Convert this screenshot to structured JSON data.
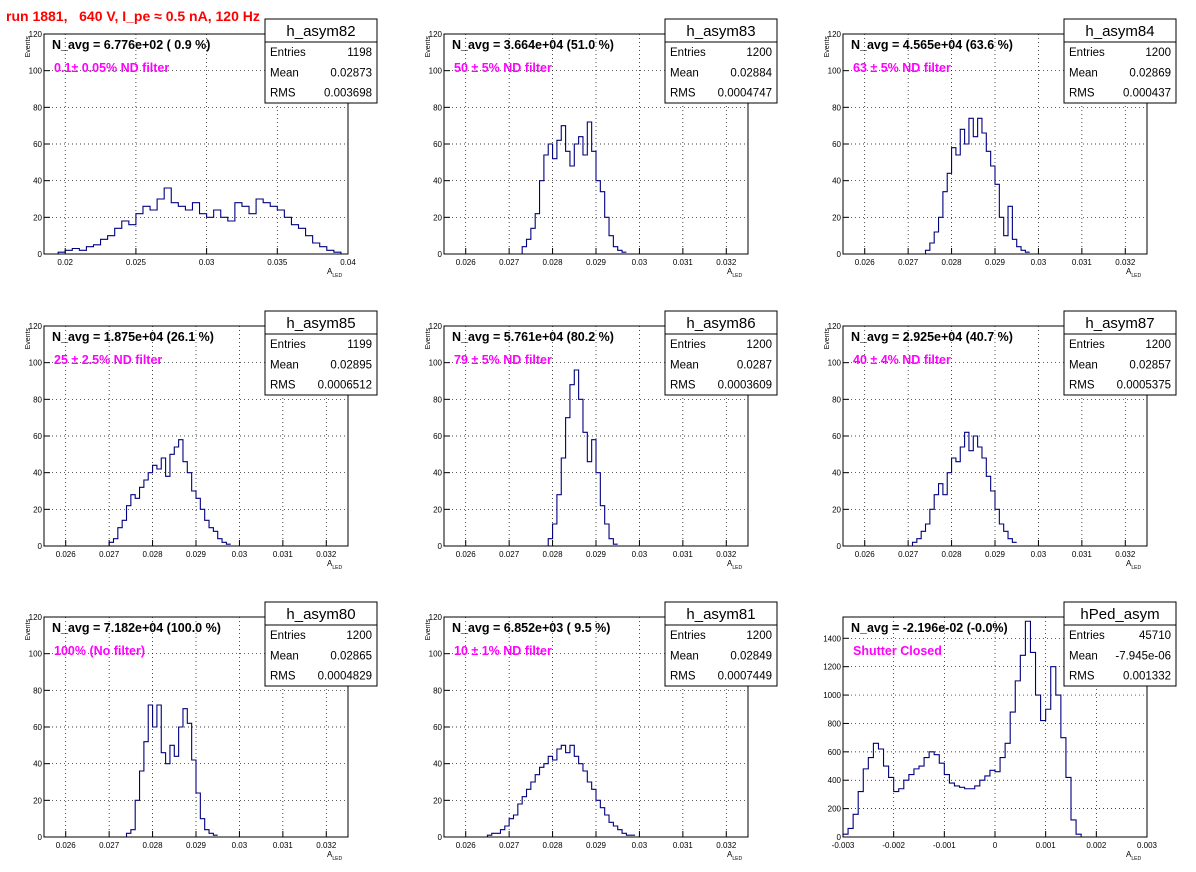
{
  "run_title": "run 1881,   640 V, I_pe ≈ 0.5 nA, 120 Hz",
  "colors": {
    "histogram": "#000080",
    "annotation": "#ff00ff",
    "title": "#ff0000"
  },
  "chart_data": [
    {
      "type": "bar",
      "hist_name": "h_asym82",
      "navg_label": "N_avg = 6.776e+02 ( 0.9 %)",
      "filter_label": "0.1± 0.05% ND filter",
      "stats": [
        [
          "Entries",
          "1198"
        ],
        [
          "Mean",
          "0.02873"
        ],
        [
          "RMS",
          "0.003698"
        ]
      ],
      "xlabel": "A",
      "xlabel_sub": "LED",
      "ylabel": "Events",
      "xlim": [
        0.0185,
        0.04
      ],
      "ylim": [
        0,
        120
      ],
      "xticks": [
        0.02,
        0.025,
        0.03,
        0.035,
        0.04
      ],
      "xtick_labels": [
        "0.02",
        "0.025",
        "0.03",
        "0.035",
        "0.04"
      ],
      "yticks": [
        0,
        20,
        40,
        60,
        80,
        100,
        120
      ],
      "bin_start": 0.0185,
      "bin_width": 0.0005,
      "values": [
        0,
        0,
        1,
        2,
        3,
        2,
        4,
        5,
        8,
        10,
        14,
        18,
        16,
        22,
        26,
        24,
        30,
        36,
        28,
        26,
        24,
        28,
        22,
        20,
        24,
        20,
        18,
        28,
        26,
        22,
        30,
        28,
        26,
        24,
        20,
        16,
        14,
        10,
        6,
        4,
        2,
        1,
        0,
        0,
        0
      ]
    },
    {
      "type": "bar",
      "hist_name": "h_asym83",
      "navg_label": "N_avg = 3.664e+04 (51.0 %)",
      "filter_label": "50 ± 5% ND filter",
      "stats": [
        [
          "Entries",
          "1200"
        ],
        [
          "Mean",
          "0.02884"
        ],
        [
          "RMS",
          "0.0004747"
        ]
      ],
      "xlabel": "A",
      "xlabel_sub": "LED",
      "ylabel": "Events",
      "xlim": [
        0.0255,
        0.0325
      ],
      "ylim": [
        0,
        120
      ],
      "xticks": [
        0.026,
        0.027,
        0.028,
        0.029,
        0.03,
        0.031,
        0.032
      ],
      "xtick_labels": [
        "0.026",
        "0.027",
        "0.028",
        "0.029",
        "0.03",
        "0.031",
        "0.032"
      ],
      "yticks": [
        0,
        20,
        40,
        60,
        80,
        100,
        120
      ],
      "bin_start": 0.0273,
      "bin_width": 0.0001,
      "values": [
        4,
        8,
        14,
        22,
        40,
        54,
        60,
        52,
        62,
        70,
        56,
        48,
        60,
        64,
        54,
        72,
        56,
        40,
        34,
        20,
        10,
        4,
        2,
        1
      ]
    },
    {
      "type": "bar",
      "hist_name": "h_asym84",
      "navg_label": "N_avg = 4.565e+04 (63.6 %)",
      "filter_label": "63 ± 5% ND filter",
      "stats": [
        [
          "Entries",
          "1200"
        ],
        [
          "Mean",
          "0.02869"
        ],
        [
          "RMS",
          "0.000437"
        ]
      ],
      "xlabel": "A",
      "xlabel_sub": "LED",
      "ylabel": "Events",
      "xlim": [
        0.0255,
        0.0325
      ],
      "ylim": [
        0,
        120
      ],
      "xticks": [
        0.026,
        0.027,
        0.028,
        0.029,
        0.03,
        0.031,
        0.032
      ],
      "xtick_labels": [
        "0.026",
        "0.027",
        "0.028",
        "0.029",
        "0.03",
        "0.031",
        "0.032"
      ],
      "yticks": [
        0,
        20,
        40,
        60,
        80,
        100,
        120
      ],
      "bin_start": 0.0274,
      "bin_width": 0.0001,
      "values": [
        2,
        6,
        12,
        20,
        34,
        44,
        58,
        54,
        68,
        60,
        74,
        64,
        74,
        66,
        56,
        48,
        38,
        20,
        10,
        26,
        8,
        4,
        2,
        1
      ]
    },
    {
      "type": "bar",
      "hist_name": "h_asym85",
      "navg_label": "N_avg = 1.875e+04 (26.1 %)",
      "filter_label": "25 ± 2.5% ND filter",
      "stats": [
        [
          "Entries",
          "1199"
        ],
        [
          "Mean",
          "0.02895"
        ],
        [
          "RMS",
          "0.0006512"
        ]
      ],
      "xlabel": "A",
      "xlabel_sub": "LED",
      "ylabel": "Events",
      "xlim": [
        0.0255,
        0.0325
      ],
      "ylim": [
        0,
        120
      ],
      "xticks": [
        0.026,
        0.027,
        0.028,
        0.029,
        0.03,
        0.031,
        0.032
      ],
      "xtick_labels": [
        "0.026",
        "0.027",
        "0.028",
        "0.029",
        "0.03",
        "0.031",
        "0.032"
      ],
      "yticks": [
        0,
        20,
        40,
        60,
        80,
        100,
        120
      ],
      "bin_start": 0.027,
      "bin_width": 0.0001,
      "values": [
        2,
        4,
        10,
        14,
        22,
        28,
        26,
        32,
        36,
        40,
        44,
        42,
        48,
        38,
        50,
        54,
        58,
        46,
        40,
        30,
        26,
        20,
        14,
        10,
        8,
        4,
        2,
        1
      ]
    },
    {
      "type": "bar",
      "hist_name": "h_asym86",
      "navg_label": "N_avg = 5.761e+04 (80.2 %)",
      "filter_label": "79 ± 5% ND filter",
      "stats": [
        [
          "Entries",
          "1200"
        ],
        [
          "Mean",
          "0.0287"
        ],
        [
          "RMS",
          "0.0003609"
        ]
      ],
      "xlabel": "A",
      "xlabel_sub": "LED",
      "ylabel": "Events",
      "xlim": [
        0.0255,
        0.0325
      ],
      "ylim": [
        0,
        120
      ],
      "xticks": [
        0.026,
        0.027,
        0.028,
        0.029,
        0.03,
        0.031,
        0.032
      ],
      "xtick_labels": [
        "0.026",
        "0.027",
        "0.028",
        "0.029",
        "0.03",
        "0.031",
        "0.032"
      ],
      "yticks": [
        0,
        20,
        40,
        60,
        80,
        100,
        120
      ],
      "bin_start": 0.0279,
      "bin_width": 0.0001,
      "values": [
        4,
        12,
        28,
        48,
        70,
        88,
        96,
        80,
        62,
        46,
        58,
        40,
        22,
        12,
        4,
        1
      ]
    },
    {
      "type": "bar",
      "hist_name": "h_asym87",
      "navg_label": "N_avg = 2.925e+04 (40.7 %)",
      "filter_label": "40 ± 4% ND filter",
      "stats": [
        [
          "Entries",
          "1200"
        ],
        [
          "Mean",
          "0.02857"
        ],
        [
          "RMS",
          "0.0005375"
        ]
      ],
      "xlabel": "A",
      "xlabel_sub": "LED",
      "ylabel": "Events",
      "xlim": [
        0.0255,
        0.0325
      ],
      "ylim": [
        0,
        120
      ],
      "xticks": [
        0.026,
        0.027,
        0.028,
        0.029,
        0.03,
        0.031,
        0.032
      ],
      "xtick_labels": [
        "0.026",
        "0.027",
        "0.028",
        "0.029",
        "0.03",
        "0.031",
        "0.032"
      ],
      "yticks": [
        0,
        20,
        40,
        60,
        80,
        100,
        120
      ],
      "bin_start": 0.0271,
      "bin_width": 0.0001,
      "values": [
        2,
        4,
        8,
        12,
        20,
        28,
        34,
        28,
        40,
        48,
        46,
        54,
        62,
        52,
        60,
        54,
        48,
        38,
        30,
        20,
        12,
        8,
        4,
        2
      ]
    },
    {
      "type": "bar",
      "hist_name": "h_asym80",
      "navg_label": "N_avg = 7.182e+04 (100.0 %)",
      "filter_label": "100% (No filter)",
      "stats": [
        [
          "Entries",
          "1200"
        ],
        [
          "Mean",
          "0.02865"
        ],
        [
          "RMS",
          "0.0004829"
        ]
      ],
      "xlabel": "A",
      "xlabel_sub": "LED",
      "ylabel": "Events",
      "xlim": [
        0.0255,
        0.0325
      ],
      "ylim": [
        0,
        120
      ],
      "xticks": [
        0.026,
        0.027,
        0.028,
        0.029,
        0.03,
        0.031,
        0.032
      ],
      "xtick_labels": [
        "0.026",
        "0.027",
        "0.028",
        "0.029",
        "0.03",
        "0.031",
        "0.032"
      ],
      "yticks": [
        0,
        20,
        40,
        60,
        80,
        100,
        120
      ],
      "bin_start": 0.0274,
      "bin_width": 0.0001,
      "values": [
        2,
        4,
        20,
        36,
        52,
        72,
        60,
        72,
        46,
        40,
        50,
        44,
        60,
        70,
        62,
        42,
        24,
        10,
        4,
        2,
        1
      ]
    },
    {
      "type": "bar",
      "hist_name": "h_asym81",
      "navg_label": "N_avg = 6.852e+03 ( 9.5 %)",
      "filter_label": "10 ± 1% ND filter",
      "stats": [
        [
          "Entries",
          "1200"
        ],
        [
          "Mean",
          "0.02849"
        ],
        [
          "RMS",
          "0.0007449"
        ]
      ],
      "xlabel": "A",
      "xlabel_sub": "LED",
      "ylabel": "Events",
      "xlim": [
        0.0255,
        0.0325
      ],
      "ylim": [
        0,
        120
      ],
      "xticks": [
        0.026,
        0.027,
        0.028,
        0.029,
        0.03,
        0.031,
        0.032
      ],
      "xtick_labels": [
        "0.026",
        "0.027",
        "0.028",
        "0.029",
        "0.03",
        "0.031",
        "0.032"
      ],
      "yticks": [
        0,
        20,
        40,
        60,
        80,
        100,
        120
      ],
      "bin_start": 0.0265,
      "bin_width": 0.0001,
      "values": [
        1,
        2,
        2,
        4,
        6,
        10,
        12,
        18,
        22,
        26,
        30,
        34,
        38,
        40,
        44,
        42,
        48,
        50,
        46,
        50,
        44,
        40,
        36,
        30,
        26,
        20,
        16,
        12,
        8,
        6,
        4,
        2,
        1,
        1
      ]
    },
    {
      "type": "bar",
      "hist_name": "hPed_asym",
      "navg_label": "N_avg = -2.196e-02 (-0.0%)",
      "filter_label": "Shutter Closed",
      "stats": [
        [
          "Entries",
          "45710"
        ],
        [
          "Mean",
          "-7.945e-06"
        ],
        [
          "RMS",
          "0.001332"
        ]
      ],
      "xlabel": "A",
      "xlabel_sub": "LED",
      "ylabel": "",
      "xlim": [
        -0.003,
        0.003
      ],
      "ylim": [
        0,
        1550
      ],
      "xticks": [
        -0.003,
        -0.002,
        -0.001,
        0,
        0.001,
        0.002,
        0.003
      ],
      "xtick_labels": [
        "-0.003",
        "-0.002",
        "-0.001",
        "0",
        "0.001",
        "0.002",
        "0.003"
      ],
      "yticks": [
        0,
        200,
        400,
        600,
        800,
        1000,
        1200,
        1400
      ],
      "bin_start": -0.003,
      "bin_width": 0.0001,
      "values": [
        20,
        60,
        160,
        320,
        480,
        560,
        660,
        620,
        500,
        420,
        320,
        340,
        400,
        440,
        480,
        500,
        560,
        600,
        580,
        520,
        440,
        380,
        360,
        350,
        340,
        340,
        360,
        400,
        430,
        470,
        460,
        560,
        660,
        880,
        1100,
        1280,
        1520,
        1300,
        1000,
        820,
        900,
        1200,
        1000,
        700,
        420,
        120,
        20,
        0,
        0,
        0,
        0,
        0,
        0,
        0,
        0,
        0,
        0,
        0,
        0,
        0
      ]
    }
  ]
}
